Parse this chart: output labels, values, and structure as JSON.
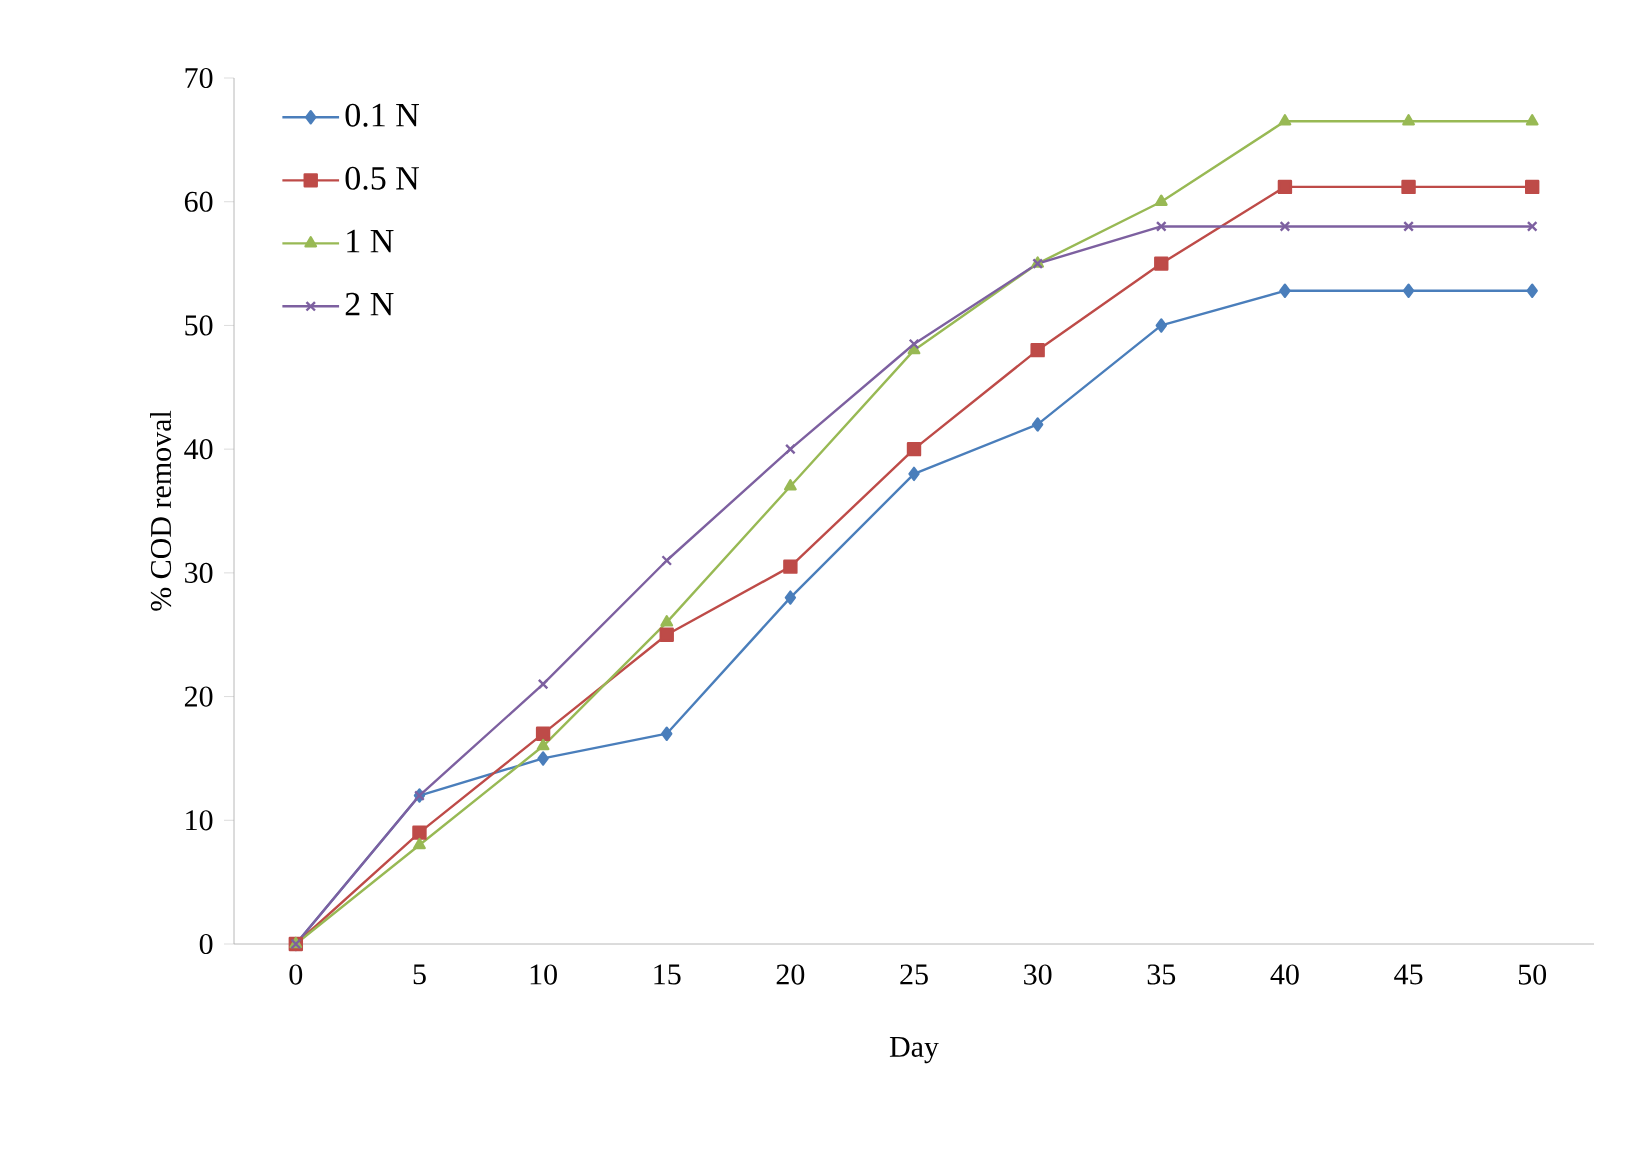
{
  "chart_data": {
    "type": "line",
    "xlabel": "Day",
    "ylabel": "% COD removal",
    "categories": [
      "0",
      "5",
      "10",
      "15",
      "20",
      "25",
      "30",
      "35",
      "40",
      "45",
      "50"
    ],
    "ylim": [
      0,
      70
    ],
    "yticks": [
      0,
      10,
      20,
      30,
      40,
      50,
      60,
      70
    ],
    "legend": "top left",
    "grid": false,
    "series": [
      {
        "name": "0.1 N",
        "color": "#4a7ebb",
        "marker": "diamond",
        "values": [
          0,
          12,
          15,
          17,
          28,
          38,
          42,
          50,
          52.8,
          52.8,
          52.8
        ]
      },
      {
        "name": "0.5 N",
        "color": "#be4b48",
        "marker": "square",
        "values": [
          0,
          9,
          17,
          25,
          30.5,
          40,
          48,
          55,
          61.2,
          61.2,
          61.2
        ]
      },
      {
        "name": "1 N",
        "color": "#98b954",
        "marker": "triangle",
        "values": [
          0,
          8,
          16,
          26,
          37,
          48,
          55,
          60,
          66.5,
          66.5,
          66.5
        ]
      },
      {
        "name": "2 N",
        "color": "#7d60a0",
        "marker": "cross",
        "values": [
          0,
          12,
          21,
          31,
          40,
          48.5,
          55,
          58,
          58,
          58,
          58
        ]
      }
    ]
  }
}
